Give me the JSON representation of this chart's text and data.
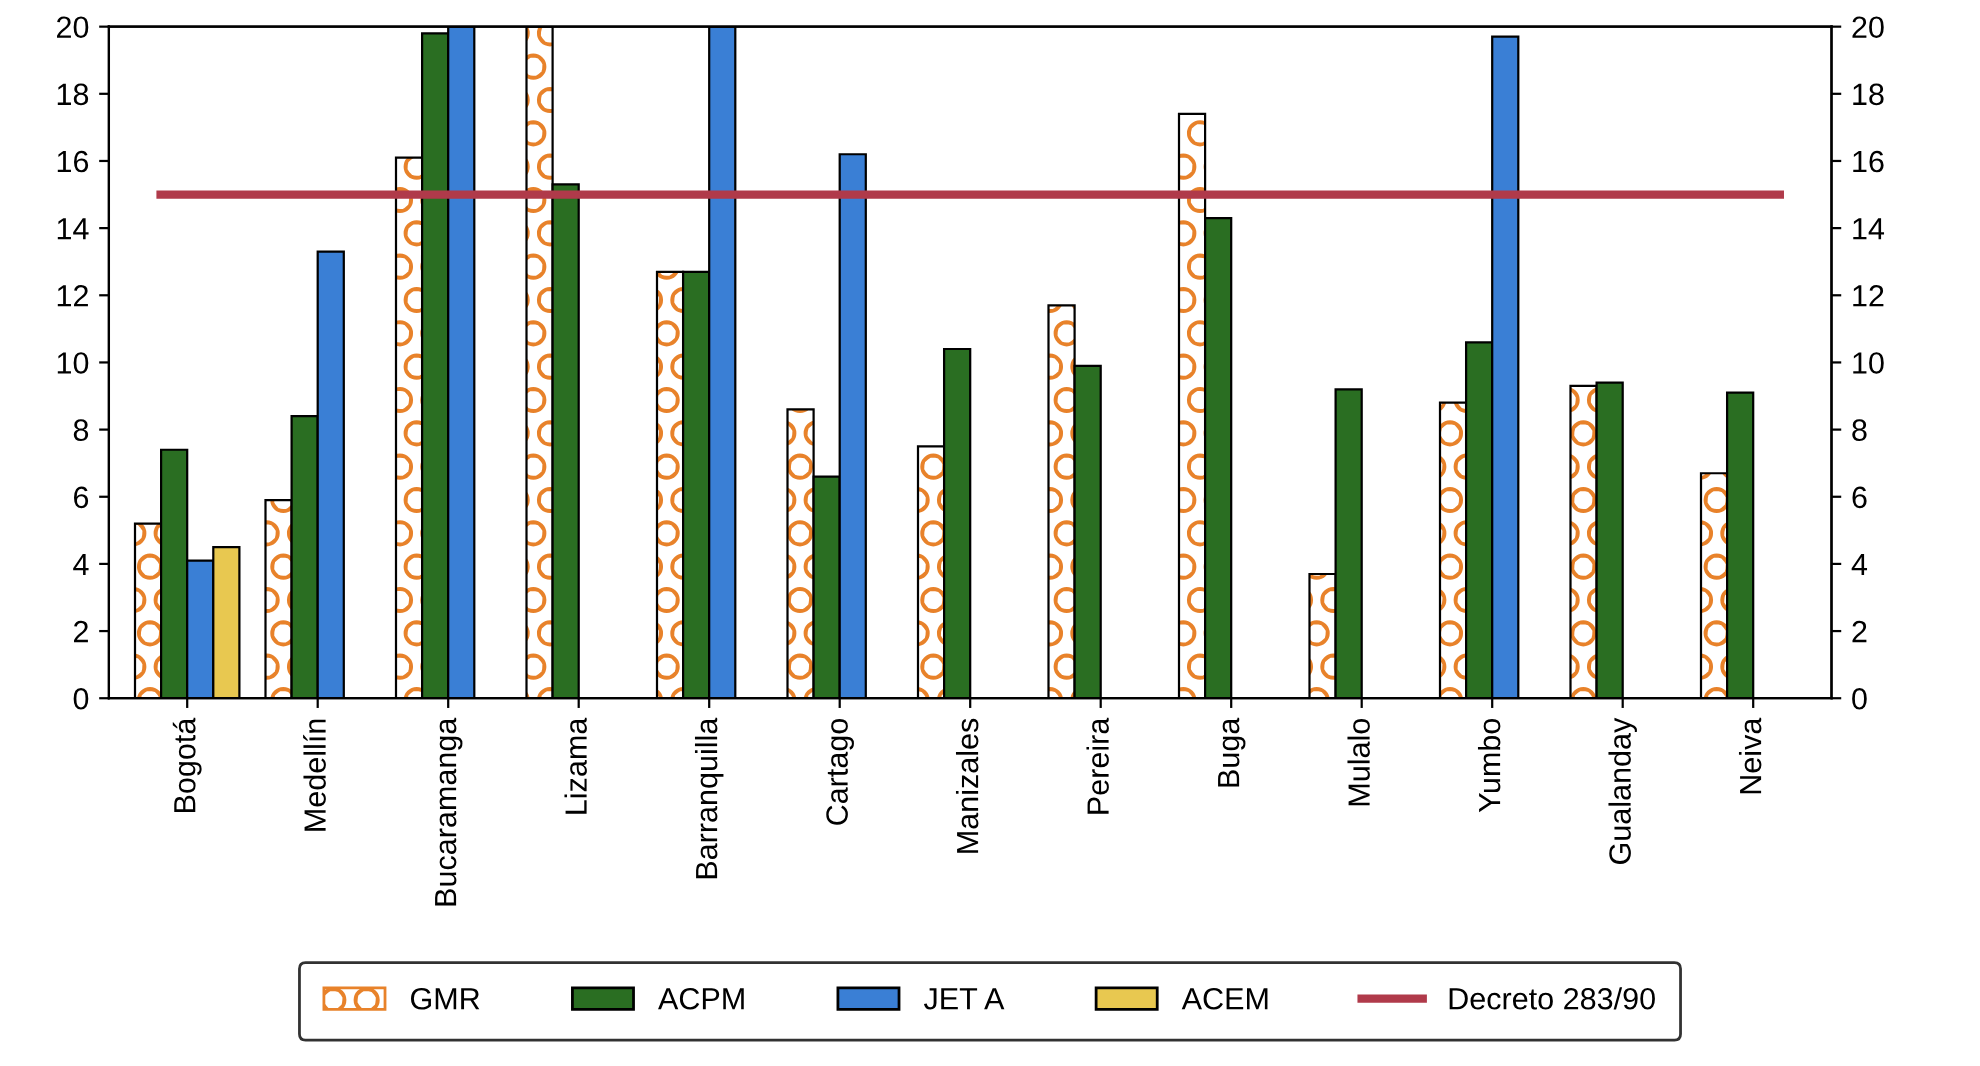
{
  "chart_data": {
    "type": "bar",
    "categories": [
      "Bogotá",
      "Medellín",
      "Bucaramanga",
      "Lizama",
      "Barranquilla",
      "Cartago",
      "Manizales",
      "Pereira",
      "Buga",
      "Mulalo",
      "Yumbo",
      "Gualanday",
      "Neiva"
    ],
    "series": [
      {
        "name": "GMR",
        "color": "#e8822a",
        "values": [
          5.2,
          5.9,
          16.1,
          20,
          12.7,
          8.6,
          7.5,
          11.7,
          17.4,
          3.7,
          8.8,
          9.3,
          6.7
        ]
      },
      {
        "name": "ACPM",
        "color": "#2a6e22",
        "values": [
          7.4,
          8.4,
          19.8,
          15.3,
          12.7,
          6.6,
          10.4,
          9.9,
          14.3,
          9.2,
          10.6,
          9.4,
          9.1
        ]
      },
      {
        "name": "JET A",
        "color": "#3a7fd5",
        "values": [
          4.1,
          13.3,
          20,
          null,
          20,
          16.2,
          null,
          null,
          null,
          null,
          19.7,
          null,
          null
        ]
      },
      {
        "name": "ACEM",
        "color": "#e8c850",
        "values": [
          4.5,
          null,
          null,
          null,
          null,
          null,
          null,
          null,
          null,
          null,
          null,
          null,
          null
        ]
      }
    ],
    "ref_lines": [
      {
        "axis": "y",
        "value": 15,
        "label": "Decreto 283/90",
        "color": "#b03a4a"
      }
    ],
    "ylim": [
      0,
      20
    ],
    "yticks": [
      0,
      2,
      4,
      6,
      8,
      10,
      12,
      14,
      16,
      18,
      20
    ],
    "y2lim": [
      0,
      20
    ],
    "y2ticks": [
      0,
      2,
      4,
      6,
      8,
      10,
      12,
      14,
      16,
      18,
      20
    ],
    "grid": false,
    "legend": "bottom"
  }
}
